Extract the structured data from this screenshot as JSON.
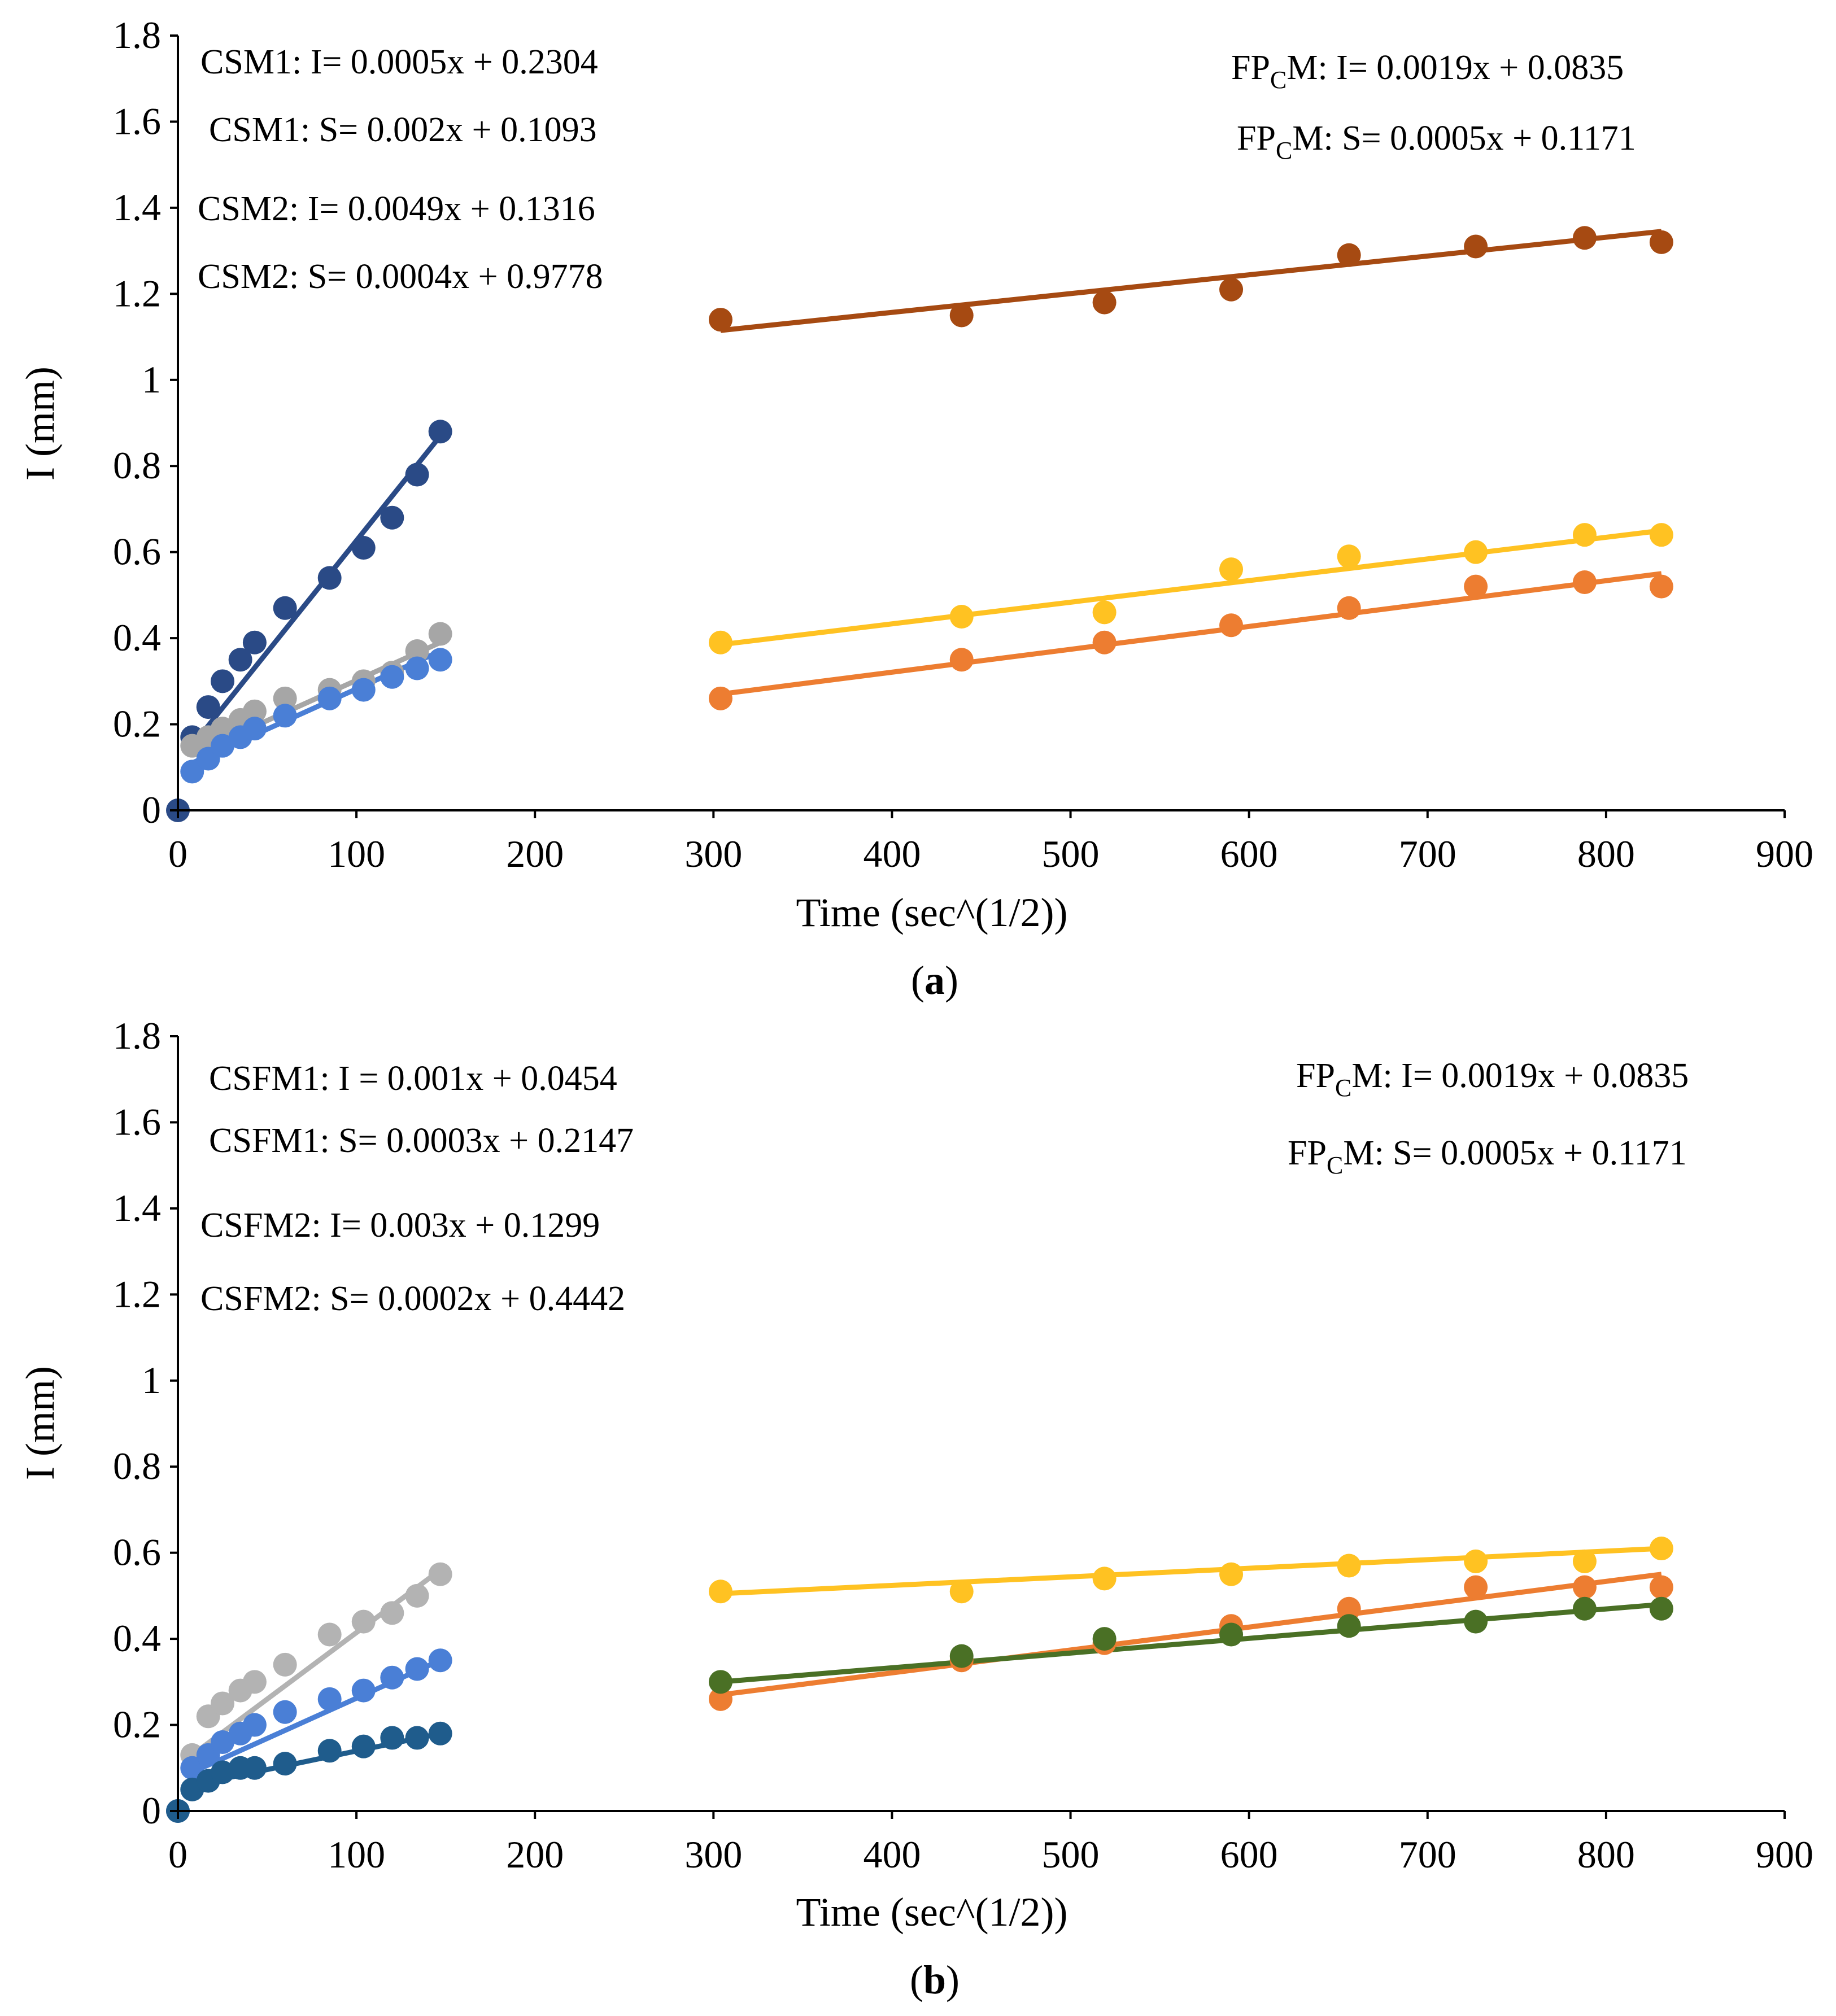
{
  "chart_data": [
    {
      "type": "scatter",
      "panel": "a",
      "caption_letter": "a",
      "xlabel": "Time (sec^(1/2))",
      "ylabel": "I (mm)",
      "xlim": [
        0,
        900
      ],
      "ylim": [
        0,
        1.8
      ],
      "x_ticks": [
        0,
        100,
        200,
        300,
        400,
        500,
        600,
        700,
        800,
        900
      ],
      "x_tick_labels": [
        "0",
        "100",
        "200",
        "300",
        "400",
        "500",
        "600",
        "700",
        "800",
        "900"
      ],
      "y_ticks": [
        0,
        0.2,
        0.4,
        0.6,
        0.8,
        1.0,
        1.2,
        1.4,
        1.6,
        1.8
      ],
      "y_tick_labels": [
        "0",
        "0.2",
        "0.4",
        "0.6",
        "0.8",
        "1",
        "1.2",
        "1.4",
        "1.6",
        "1.8"
      ],
      "equations_left": [
        {
          "text": "CSM1: I= 0.0005x + 0.2304"
        },
        {
          "text": "CSM1: S= 0.002x + 0.1093"
        },
        {
          "text": "CSM2: I= 0.0049x + 0.1316"
        },
        {
          "text": "CSM2: S= 0.0004x + 0.9778"
        }
      ],
      "equations_right": [
        {
          "pre": "FP",
          "sub": "C",
          "post": "M: I= 0.0019x + 0.0835"
        },
        {
          "pre": "FP",
          "sub": "C",
          "post": "M: S= 0.0005x + 0.1171"
        }
      ],
      "series": [
        {
          "name": "CSM2 I",
          "color": "#2a4a86",
          "x": [
            0,
            8,
            17,
            25,
            35,
            43,
            60,
            85,
            104,
            120,
            134,
            147
          ],
          "y": [
            0,
            0.17,
            0.24,
            0.3,
            0.35,
            0.39,
            0.47,
            0.54,
            0.61,
            0.68,
            0.78,
            0.88
          ],
          "fit": [
            [
              8,
              0.15
            ],
            [
              147,
              0.87
            ]
          ]
        },
        {
          "name": "CSM1 I",
          "color": "#a6a6a6",
          "x": [
            8,
            17,
            25,
            35,
            43,
            60,
            85,
            104,
            120,
            134,
            147
          ],
          "y": [
            0.15,
            0.17,
            0.19,
            0.21,
            0.23,
            0.26,
            0.28,
            0.3,
            0.32,
            0.37,
            0.41
          ],
          "fit": [
            [
              8,
              0.13
            ],
            [
              147,
              0.39
            ]
          ]
        },
        {
          "name": "CSM1 S",
          "color": "#4a7fd6",
          "x": [
            8,
            17,
            25,
            35,
            43,
            60,
            85,
            104,
            120,
            134,
            147
          ],
          "y": [
            0.09,
            0.12,
            0.15,
            0.17,
            0.19,
            0.22,
            0.26,
            0.28,
            0.31,
            0.33,
            0.35
          ],
          "fit": [
            [
              8,
              0.11
            ],
            [
              147,
              0.37
            ]
          ]
        },
        {
          "name": "FPCM I (brown)",
          "color": "#a64a12",
          "x": [
            304,
            439,
            519,
            590,
            656,
            727,
            788,
            831
          ],
          "y": [
            1.14,
            1.15,
            1.18,
            1.21,
            1.29,
            1.31,
            1.33,
            1.32
          ],
          "fit": [
            [
              304,
              1.115
            ],
            [
              831,
              1.345
            ]
          ]
        },
        {
          "name": "FPCM I (yellow)",
          "color": "#ffc222",
          "x": [
            304,
            439,
            519,
            590,
            656,
            727,
            788,
            831
          ],
          "y": [
            0.39,
            0.45,
            0.46,
            0.56,
            0.59,
            0.6,
            0.64,
            0.64
          ],
          "fit": [
            [
              304,
              0.385
            ],
            [
              831,
              0.65
            ]
          ]
        },
        {
          "name": "FPCM S (orange)",
          "color": "#ed7d31",
          "x": [
            304,
            439,
            519,
            590,
            656,
            727,
            788,
            831
          ],
          "y": [
            0.26,
            0.35,
            0.39,
            0.43,
            0.47,
            0.52,
            0.53,
            0.52
          ],
          "fit": [
            [
              304,
              0.27
            ],
            [
              831,
              0.55
            ]
          ]
        }
      ]
    },
    {
      "type": "scatter",
      "panel": "b",
      "caption_letter": "b",
      "xlabel": "Time (sec^(1/2))",
      "ylabel": "I (mm)",
      "xlim": [
        0,
        900
      ],
      "ylim": [
        0,
        1.8
      ],
      "x_ticks": [
        0,
        100,
        200,
        300,
        400,
        500,
        600,
        700,
        800,
        900
      ],
      "x_tick_labels": [
        "0",
        "100",
        "200",
        "300",
        "400",
        "500",
        "600",
        "700",
        "800",
        "900"
      ],
      "y_ticks": [
        0,
        0.2,
        0.4,
        0.6,
        0.8,
        1.0,
        1.2,
        1.4,
        1.6,
        1.8
      ],
      "y_tick_labels": [
        "0",
        "0.2",
        "0.4",
        "0.6",
        "0.8",
        "1",
        "1.2",
        "1.4",
        "1.6",
        "1.8"
      ],
      "equations_left": [
        {
          "text": "CSFM1: I = 0.001x + 0.0454"
        },
        {
          "text": "CSFM1: S= 0.0003x + 0.2147"
        },
        {
          "text": "CSFM2: I= 0.003x + 0.1299"
        },
        {
          "text": "CSFM2: S= 0.0002x + 0.4442"
        }
      ],
      "equations_right": [
        {
          "pre": "FP",
          "sub": "C",
          "post": "M: I= 0.0019x + 0.0835"
        },
        {
          "pre": "FP",
          "sub": "C",
          "post": "M: S= 0.0005x + 0.1171"
        }
      ],
      "series": [
        {
          "name": "CSFM2 I",
          "color": "#b3b3b3",
          "x": [
            0,
            8,
            17,
            25,
            35,
            43,
            60,
            85,
            104,
            120,
            134,
            147
          ],
          "y": [
            0,
            0.13,
            0.22,
            0.25,
            0.28,
            0.3,
            0.34,
            0.41,
            0.44,
            0.46,
            0.5,
            0.55
          ],
          "fit": [
            [
              8,
              0.13
            ],
            [
              147,
              0.56
            ]
          ]
        },
        {
          "name": "CSFM1 I",
          "color": "#4a7fd6",
          "x": [
            0,
            8,
            17,
            25,
            35,
            43,
            60,
            85,
            104,
            120,
            134,
            147
          ],
          "y": [
            0,
            0.1,
            0.13,
            0.16,
            0.18,
            0.2,
            0.23,
            0.26,
            0.28,
            0.31,
            0.33,
            0.35
          ],
          "fit": [
            [
              8,
              0.09
            ],
            [
              147,
              0.35
            ]
          ]
        },
        {
          "name": "CSFM1 S",
          "color": "#1f5c8c",
          "x": [
            0,
            8,
            17,
            25,
            35,
            43,
            60,
            85,
            104,
            120,
            134,
            147
          ],
          "y": [
            0,
            0.05,
            0.07,
            0.09,
            0.1,
            0.1,
            0.11,
            0.14,
            0.15,
            0.17,
            0.17,
            0.18
          ],
          "fit": [
            [
              8,
              0.06
            ],
            [
              147,
              0.18
            ]
          ]
        },
        {
          "name": "FPCM I (yellow)",
          "color": "#ffc222",
          "x": [
            304,
            439,
            519,
            590,
            656,
            727,
            788,
            831
          ],
          "y": [
            0.51,
            0.51,
            0.54,
            0.55,
            0.57,
            0.58,
            0.58,
            0.61
          ],
          "fit": [
            [
              304,
              0.505
            ],
            [
              831,
              0.61
            ]
          ]
        },
        {
          "name": "FPCM S (orange)",
          "color": "#ed7d31",
          "x": [
            304,
            439,
            519,
            590,
            656,
            727,
            788,
            831
          ],
          "y": [
            0.26,
            0.35,
            0.39,
            0.43,
            0.47,
            0.52,
            0.52,
            0.52
          ],
          "fit": [
            [
              304,
              0.27
            ],
            [
              831,
              0.55
            ]
          ]
        },
        {
          "name": "FPCM S (green)",
          "color": "#4a7025",
          "x": [
            304,
            439,
            519,
            590,
            656,
            727,
            788,
            831
          ],
          "y": [
            0.3,
            0.36,
            0.4,
            0.41,
            0.43,
            0.44,
            0.47,
            0.47
          ],
          "fit": [
            [
              304,
              0.3
            ],
            [
              831,
              0.48
            ]
          ]
        }
      ]
    }
  ]
}
